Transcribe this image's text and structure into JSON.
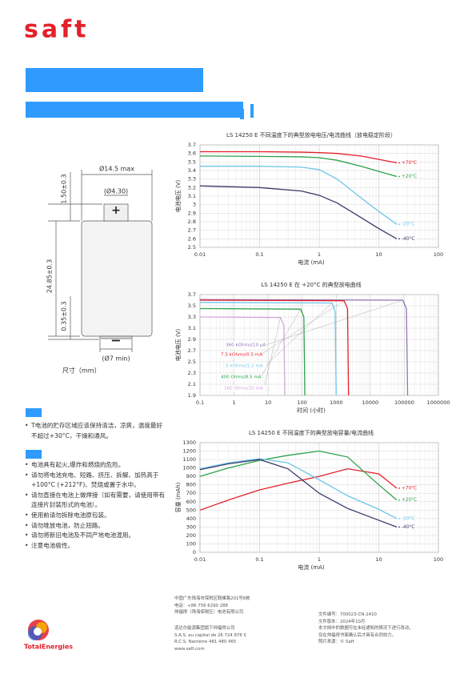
{
  "logo": "saft",
  "dimensions": {
    "diameter": "Ø14.5 max",
    "terminal": "(Ø4.30)",
    "terminal_height": "1.50±0.3",
    "height": "24.85±0.3",
    "bottom": "0.35±0.3",
    "negative": "(Ø7 min)",
    "caption": "尺寸（mm）"
  },
  "storage": [
    "T电池的贮存区域应该保持清洁，凉爽，温度最好不超过+30°C，干燥和通风。"
  ],
  "safety": [
    "电池具有起火,爆炸和燃烧的危险。",
    "请勿将电池充电、短路、挤压、拆解、加热高于+100°C (+212°F)、焚烧或置于水中。",
    "请勿直接在电池上做焊接（如有需要，请使用带有连接片封装形式的电池）。",
    "使用前请勿拆除电池原包装。",
    "请勿堆放电池，防止短路。",
    "请勿将新旧电池及不同产地电池混用。",
    "注意电池极性。"
  ],
  "footer": {
    "address": [
      "中国广东珠海市保税区联峰路201号8栋",
      "电话：+86 756 6290 288",
      "帅福得（珠海保税区）电池有限公司"
    ],
    "legal": [
      "道达尔能源集团旗下帅福得公司",
      "S.A.S. au capital de 26 724 876 €",
      "R.C.S. Nanterre 481 480 465",
      "www.saft.com"
    ],
    "doc": [
      "文件编号：700023-CN-2410",
      "文件版本：2024年10月",
      "本文档中的数据可在未经通知的情况下进行改动，",
      "仅在帅福得书面确认后才具有合同效力。",
      "照片来源：© Saft"
    ],
    "brand": "TotalEnergies"
  },
  "charts": [
    {
      "type": "line",
      "title": "LS 14250 E 不同温度下的典型放电电压/电流曲线（放电稳定阶段）",
      "xlabel": "电流 (mA)",
      "ylabel": "电池电压 (V)",
      "xscale": "log",
      "grid": true,
      "xlim": [
        0.01,
        100
      ],
      "xticks": [
        0.01,
        0.1,
        1,
        10,
        100
      ],
      "ylim": [
        2.5,
        3.7
      ],
      "yticks": [
        2.5,
        2.6,
        2.7,
        2.8,
        2.9,
        3,
        3.1,
        3.2,
        3.3,
        3.4,
        3.5,
        3.6,
        3.7
      ],
      "series": [
        {
          "name": "+70°C",
          "color": "#e3202a",
          "x": [
            0.01,
            0.1,
            0.5,
            1,
            2,
            5,
            10,
            20
          ],
          "values": [
            3.62,
            3.62,
            3.615,
            3.61,
            3.6,
            3.57,
            3.53,
            3.49
          ]
        },
        {
          "name": "+20°C",
          "color": "#2ba14b",
          "x": [
            0.01,
            0.1,
            0.5,
            1,
            2,
            5,
            10,
            20
          ],
          "values": [
            3.57,
            3.565,
            3.56,
            3.55,
            3.52,
            3.45,
            3.39,
            3.33
          ]
        },
        {
          "name": "-20°C",
          "color": "#6fc6ea",
          "x": [
            0.01,
            0.1,
            0.5,
            1,
            2,
            5,
            10,
            20
          ],
          "values": [
            3.45,
            3.45,
            3.44,
            3.41,
            3.3,
            3.08,
            2.92,
            2.77
          ]
        },
        {
          "name": "-40°C",
          "color": "#383a68",
          "x": [
            0.01,
            0.1,
            0.5,
            1,
            2,
            5,
            10,
            20
          ],
          "values": [
            3.22,
            3.2,
            3.16,
            3.11,
            3.02,
            2.85,
            2.72,
            2.6
          ]
        }
      ]
    },
    {
      "type": "line",
      "title": "LS 14250 E 在 +20°C 的典型放电曲线",
      "xlabel": "时间 (小时)",
      "ylabel": "电池电压 (V)",
      "xscale": "log",
      "grid": true,
      "xlim": [
        0.1,
        1000000
      ],
      "xticks": [
        0.1,
        1,
        10,
        100,
        1000,
        10000,
        100000,
        1000000
      ],
      "ylim": [
        1.9,
        3.7
      ],
      "yticks": [
        1.9,
        2.1,
        2.3,
        2.5,
        2.7,
        2.9,
        3.1,
        3.3,
        3.5,
        3.7
      ],
      "series": [
        {
          "name": "360 kOhms/10 µA",
          "color": "#8f72b5",
          "x": [
            0.1,
            90000,
            115000,
            125000
          ],
          "values": [
            3.61,
            3.6,
            3.45,
            1.9
          ]
        },
        {
          "name": "7.5 kOhms/0.5 mA",
          "color": "#e3202a",
          "x": [
            0.1,
            1700,
            2150,
            2300
          ],
          "values": [
            3.6,
            3.59,
            3.45,
            1.9
          ]
        },
        {
          "name": "3 kOhms/1.2 mA",
          "color": "#6fc6ea",
          "x": [
            0.1,
            750,
            930,
            1000
          ],
          "values": [
            3.56,
            3.55,
            3.4,
            1.9
          ]
        },
        {
          "name": "400 Ohms/8.5 mA",
          "color": "#2ba14b",
          "x": [
            0.1,
            90,
            112,
            120
          ],
          "values": [
            3.45,
            3.44,
            3.3,
            1.9
          ]
        },
        {
          "name": "160 Ohms/20 mA",
          "color": "#d3a8dd",
          "x": [
            0.1,
            23,
            29,
            31
          ],
          "values": [
            3.3,
            3.29,
            3.15,
            1.9
          ]
        }
      ]
    },
    {
      "type": "line",
      "title": "LS 14250 E 不同温度下的典型放电容量/电流曲线",
      "xlabel": "电流 (mA)",
      "ylabel": "容量 (mAh)",
      "xscale": "log",
      "grid": true,
      "xlim": [
        0.01,
        100
      ],
      "xticks": [
        0.01,
        0.1,
        1,
        10,
        100
      ],
      "ylim": [
        0,
        1300
      ],
      "yticks": [
        0,
        100,
        200,
        300,
        400,
        500,
        600,
        700,
        800,
        900,
        1000,
        1100,
        1200,
        1300
      ],
      "series": [
        {
          "name": "+70°C",
          "color": "#e3202a",
          "x": [
            0.01,
            0.03,
            0.1,
            0.3,
            1,
            3,
            10,
            20
          ],
          "values": [
            500,
            620,
            740,
            820,
            900,
            990,
            930,
            760
          ]
        },
        {
          "name": "+20°C",
          "color": "#2ba14b",
          "x": [
            0.01,
            0.03,
            0.1,
            0.3,
            1,
            3,
            10,
            20
          ],
          "values": [
            900,
            1000,
            1090,
            1150,
            1200,
            1130,
            800,
            620
          ]
        },
        {
          "name": "-20°C",
          "color": "#6fc6ea",
          "x": [
            0.01,
            0.03,
            0.1,
            0.3,
            1,
            3,
            10,
            20
          ],
          "values": [
            990,
            1060,
            1110,
            1060,
            860,
            670,
            510,
            400
          ]
        },
        {
          "name": "-40°C",
          "color": "#383a68",
          "x": [
            0.01,
            0.03,
            0.1,
            0.3,
            1,
            3,
            10,
            20
          ],
          "values": [
            980,
            1050,
            1100,
            990,
            700,
            520,
            380,
            300
          ]
        }
      ]
    }
  ]
}
